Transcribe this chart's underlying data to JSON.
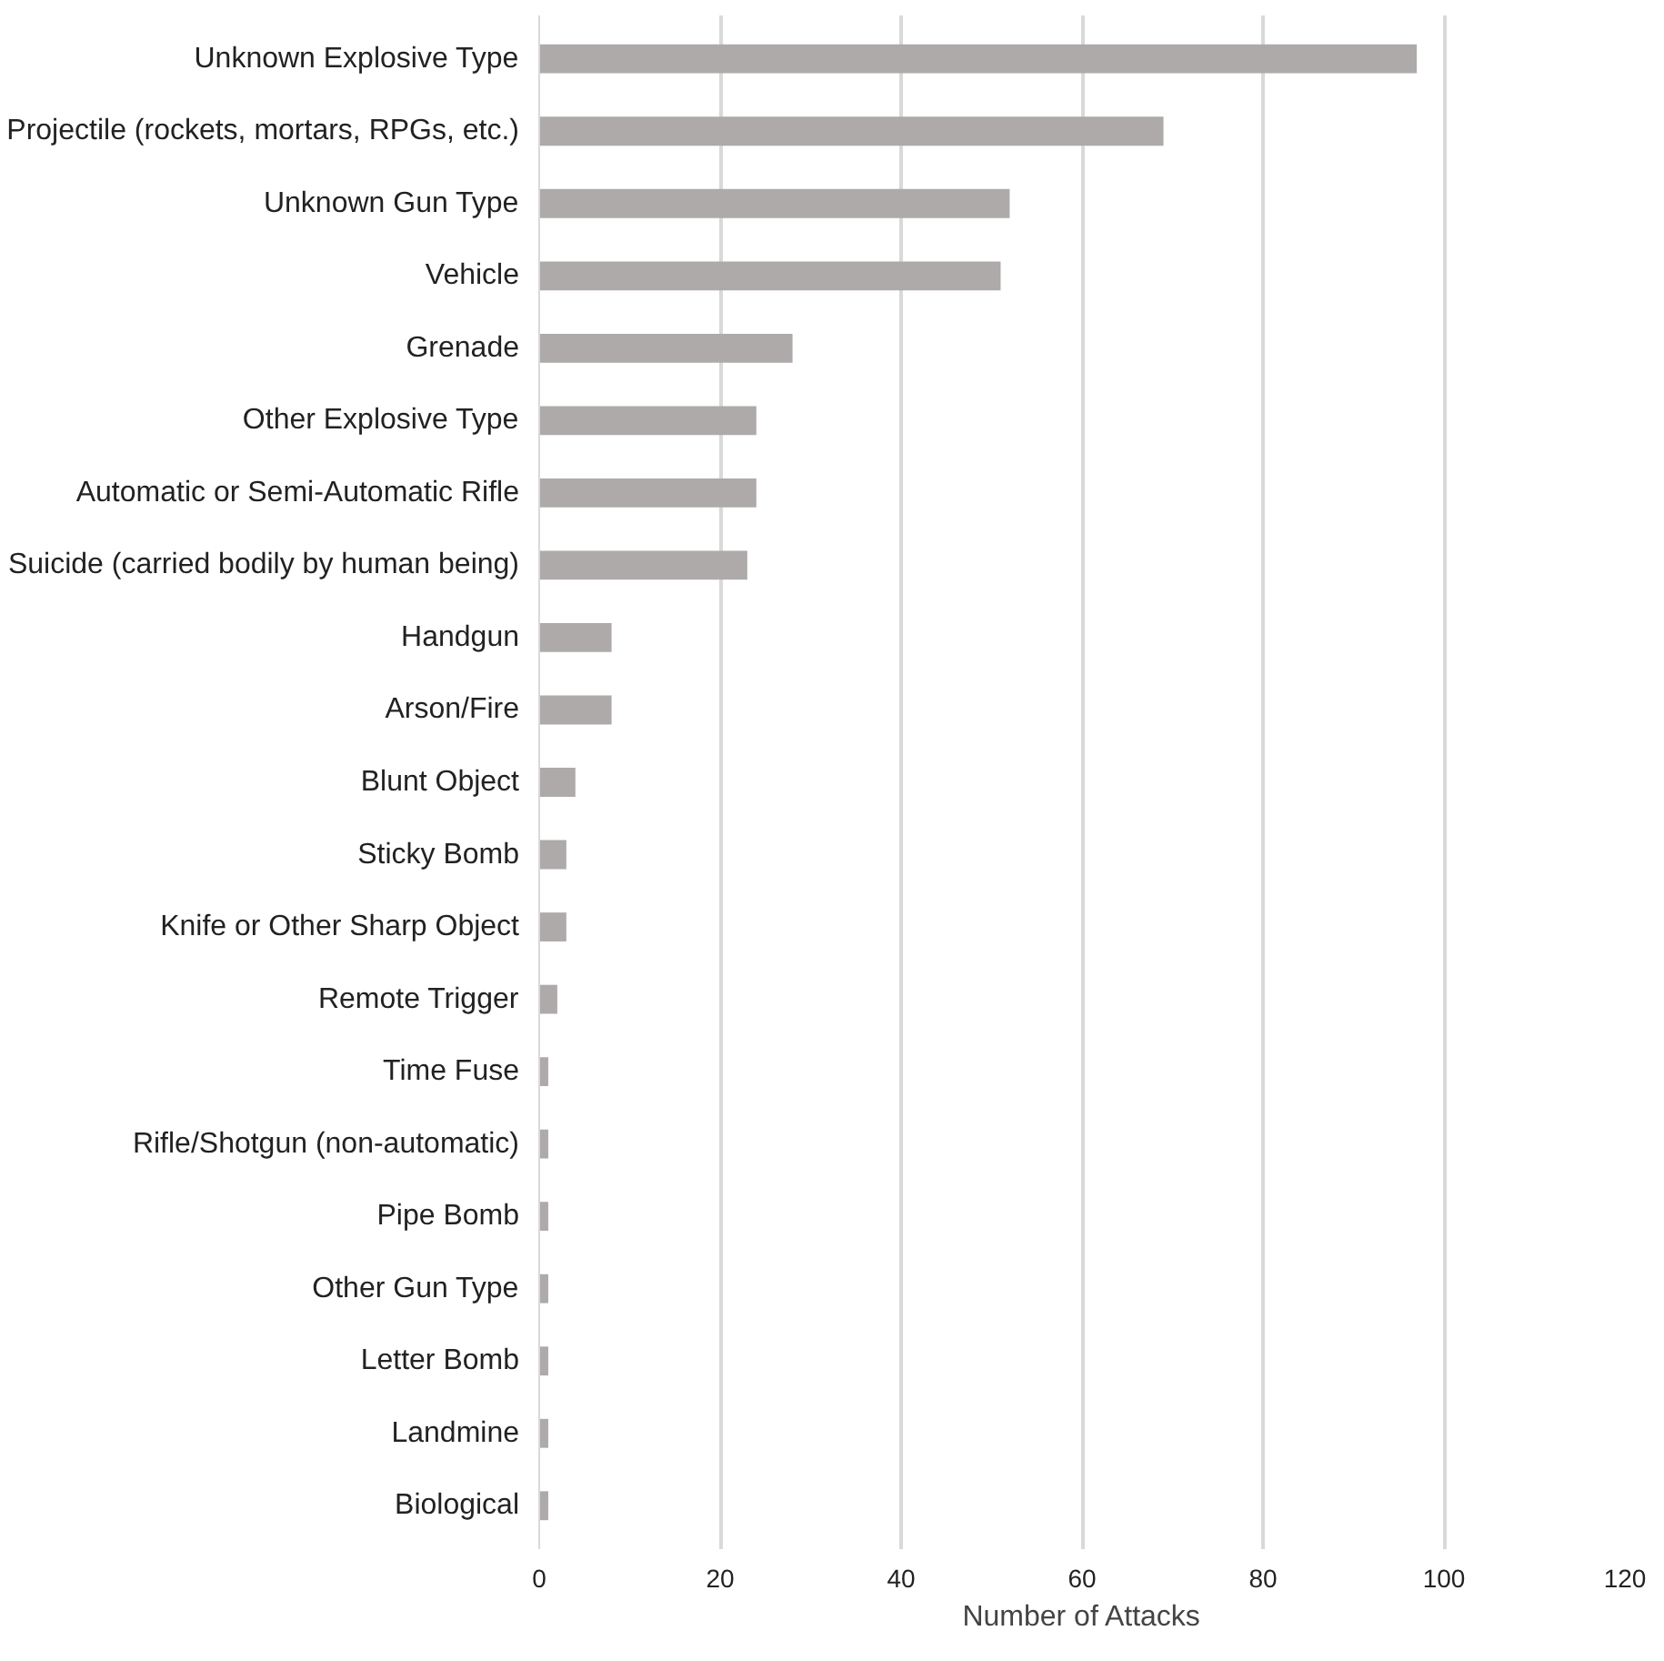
{
  "chart_data": {
    "type": "bar",
    "orientation": "horizontal",
    "xlabel": "Number of Attacks",
    "categories": [
      "Unknown Explosive Type",
      "Projectile (rockets, mortars, RPGs, etc.)",
      "Unknown Gun Type",
      "Vehicle",
      "Grenade",
      "Other Explosive Type",
      "Automatic or Semi-Automatic Rifle",
      "Suicide (carried bodily by human being)",
      "Handgun",
      "Arson/Fire",
      "Blunt Object",
      "Sticky Bomb",
      "Knife or Other Sharp Object",
      "Remote Trigger",
      "Time Fuse",
      "Rifle/Shotgun (non-automatic)",
      "Pipe Bomb",
      "Other Gun Type",
      "Letter Bomb",
      "Landmine",
      "Biological"
    ],
    "values": [
      97,
      69,
      52,
      51,
      28,
      24,
      24,
      23,
      8,
      8,
      4,
      3,
      3,
      2,
      1,
      1,
      1,
      1,
      1,
      1,
      1
    ],
    "color": "#aeaaaa",
    "xlim": [
      0,
      120
    ],
    "xticks": [
      0,
      20,
      40,
      60,
      80,
      100,
      120
    ],
    "grid": "x"
  }
}
